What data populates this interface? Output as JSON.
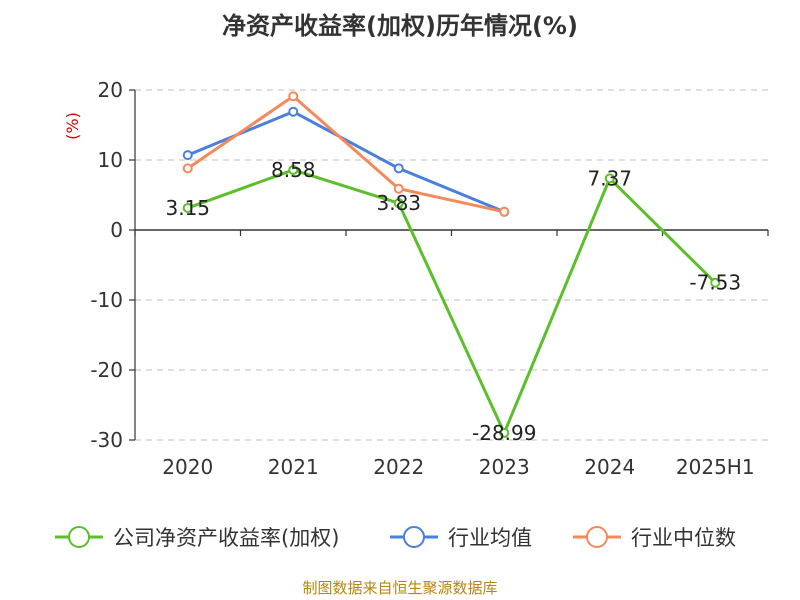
{
  "chart_data": {
    "type": "line",
    "title": "净资产收益率(加权)历年情况(%)",
    "ylabel": "(%)",
    "categories": [
      "2020",
      "2021",
      "2022",
      "2023",
      "2024",
      "2025H1"
    ],
    "ylim": [
      -30,
      20
    ],
    "yticks": [
      20,
      10,
      0,
      -10,
      -20,
      -30
    ],
    "grid": true,
    "legend_position": "bottom",
    "series": [
      {
        "name": "公司净资产收益率(加权)",
        "color": "#5cbf2a",
        "values": [
          3.15,
          8.58,
          3.83,
          -28.99,
          7.37,
          -7.53
        ],
        "labels": [
          "3.15",
          "8.58",
          "3.83",
          "-28.99",
          "7.37",
          "-7.53"
        ]
      },
      {
        "name": "行业均值",
        "color": "#4a7fdc",
        "values": [
          10.7,
          16.9,
          8.8,
          2.6,
          null,
          null
        ]
      },
      {
        "name": "行业中位数",
        "color": "#f5895a",
        "values": [
          8.8,
          19.1,
          5.9,
          2.6,
          null,
          null
        ]
      }
    ]
  },
  "source": "制图数据来自恒生聚源数据库"
}
